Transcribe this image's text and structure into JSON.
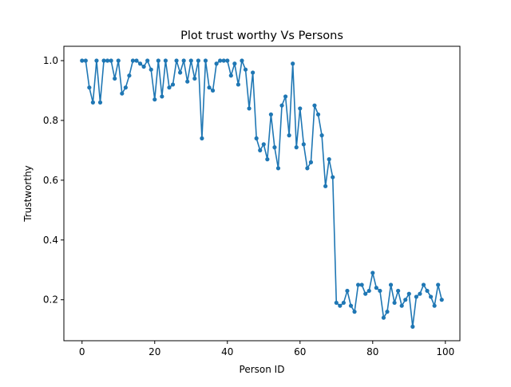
{
  "chart_data": {
    "type": "line",
    "title": "Plot trust worthy Vs Persons",
    "xlabel": "Person ID",
    "ylabel": "Trustworthy",
    "xlim": [
      -5,
      104
    ],
    "ylim": [
      0.063,
      1.048
    ],
    "xticks": [
      0,
      20,
      40,
      60,
      80,
      100
    ],
    "yticks": [
      0.2,
      0.4,
      0.6,
      0.8,
      1.0
    ],
    "xtick_labels": [
      "0",
      "20",
      "40",
      "60",
      "80",
      "100"
    ],
    "ytick_labels": [
      "0.2",
      "0.4",
      "0.6",
      "0.8",
      "1.0"
    ],
    "grid": false,
    "legend": "none",
    "line_color": "#1f77b4",
    "marker": "circle",
    "x": [
      0,
      1,
      2,
      3,
      4,
      5,
      6,
      7,
      8,
      9,
      10,
      11,
      12,
      13,
      14,
      15,
      16,
      17,
      18,
      19,
      20,
      21,
      22,
      23,
      24,
      25,
      26,
      27,
      28,
      29,
      30,
      31,
      32,
      33,
      34,
      35,
      36,
      37,
      38,
      39,
      40,
      41,
      42,
      43,
      44,
      45,
      46,
      47,
      48,
      49,
      50,
      51,
      52,
      53,
      54,
      55,
      56,
      57,
      58,
      59,
      60,
      61,
      62,
      63,
      64,
      65,
      66,
      67,
      68,
      69,
      70,
      71,
      72,
      73,
      74,
      75,
      76,
      77,
      78,
      79,
      80,
      81,
      82,
      83,
      84,
      85,
      86,
      87,
      88,
      89,
      90,
      91,
      92,
      93,
      94,
      95,
      96,
      97,
      98,
      99
    ],
    "y": [
      1.0,
      1.0,
      0.91,
      0.86,
      1.0,
      0.86,
      1.0,
      1.0,
      1.0,
      0.94,
      1.0,
      0.89,
      0.91,
      0.95,
      1.0,
      1.0,
      0.99,
      0.98,
      1.0,
      0.97,
      0.87,
      1.0,
      0.88,
      1.0,
      0.91,
      0.92,
      1.0,
      0.96,
      1.0,
      0.93,
      1.0,
      0.94,
      1.0,
      0.74,
      1.0,
      0.91,
      0.9,
      0.99,
      1.0,
      1.0,
      1.0,
      0.95,
      0.99,
      0.92,
      1.0,
      0.97,
      0.84,
      0.96,
      0.74,
      0.7,
      0.72,
      0.67,
      0.82,
      0.71,
      0.64,
      0.85,
      0.88,
      0.75,
      0.99,
      0.71,
      0.84,
      0.72,
      0.64,
      0.66,
      0.85,
      0.82,
      0.75,
      0.58,
      0.67,
      0.61,
      0.19,
      0.18,
      0.19,
      0.23,
      0.18,
      0.16,
      0.25,
      0.25,
      0.22,
      0.23,
      0.29,
      0.24,
      0.23,
      0.14,
      0.16,
      0.25,
      0.19,
      0.23,
      0.18,
      0.2,
      0.22,
      0.11,
      0.21,
      0.22,
      0.25,
      0.23,
      0.21,
      0.18,
      0.25,
      0.2
    ]
  }
}
